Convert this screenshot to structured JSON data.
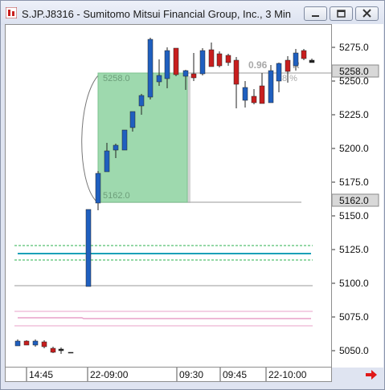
{
  "window": {
    "title": "S.JP.J8316 - Sumitomo Mitsui Financial Group, Inc., 3 Min"
  },
  "price_axis": {
    "labels": [
      "5275.0",
      "5250.0",
      "5225.0",
      "5200.0",
      "5175.0",
      "5150.0",
      "5125.0",
      "5100.0",
      "5075.0",
      "5050.0"
    ],
    "current_price_tag": "5258.0",
    "zone_low_tag": "5162.0"
  },
  "time_axis": {
    "labels": [
      "14:45",
      "22-09:00",
      "09:30",
      "09:45",
      "22-10:00"
    ]
  },
  "drawing": {
    "zone_top_label": "5258.0",
    "zone_bottom_label": "5162.0",
    "stat_value": "0.96",
    "stat_unit": "R",
    "stat_percent": "8 %"
  },
  "colors": {
    "up_candle": "#1f5fbf",
    "down_candle": "#c81e1e",
    "zone_fill": "#8fd4a4",
    "teal_line": "#1aa0b8",
    "green_dashed": "#2bb24c",
    "pink_line": "#e8a0c8",
    "grey_line": "#9a9a9a"
  },
  "icons": {
    "app": "chart-app-icon",
    "minimize": "minimize-icon",
    "maximize": "restore-icon",
    "close": "close-icon",
    "scroll": "arrow-right-icon"
  }
}
